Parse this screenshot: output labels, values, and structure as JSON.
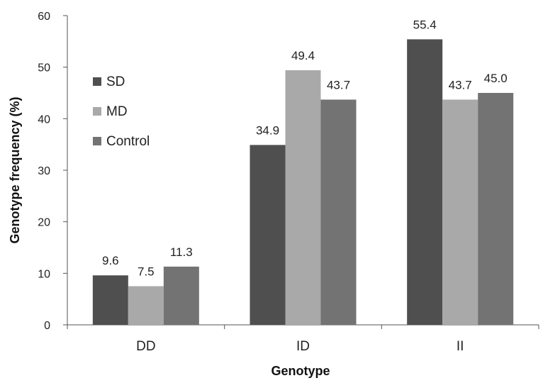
{
  "chart_data": {
    "type": "bar",
    "title": "",
    "xlabel": "Genotype",
    "ylabel": "Genotype  frequency (%)",
    "categories": [
      "DD",
      "ID",
      "II"
    ],
    "series": [
      {
        "name": "SD",
        "values": [
          9.6,
          34.9,
          55.4
        ],
        "labels": [
          "9.6",
          "34.9",
          "55.4"
        ],
        "color": "#4f4f4f"
      },
      {
        "name": "MD",
        "values": [
          7.5,
          49.4,
          43.7
        ],
        "labels": [
          "7.5",
          "49.4",
          "43.7"
        ],
        "color": "#a9a9a9"
      },
      {
        "name": "Control",
        "values": [
          11.3,
          43.7,
          45.0
        ],
        "labels": [
          "11.3",
          "43.7",
          "45.0"
        ],
        "color": "#737373"
      }
    ],
    "ylim": [
      0,
      60
    ],
    "yticks": [
      "0",
      "10",
      "20",
      "30",
      "40",
      "50",
      "60"
    ],
    "grid": false,
    "legend": "top-left"
  }
}
